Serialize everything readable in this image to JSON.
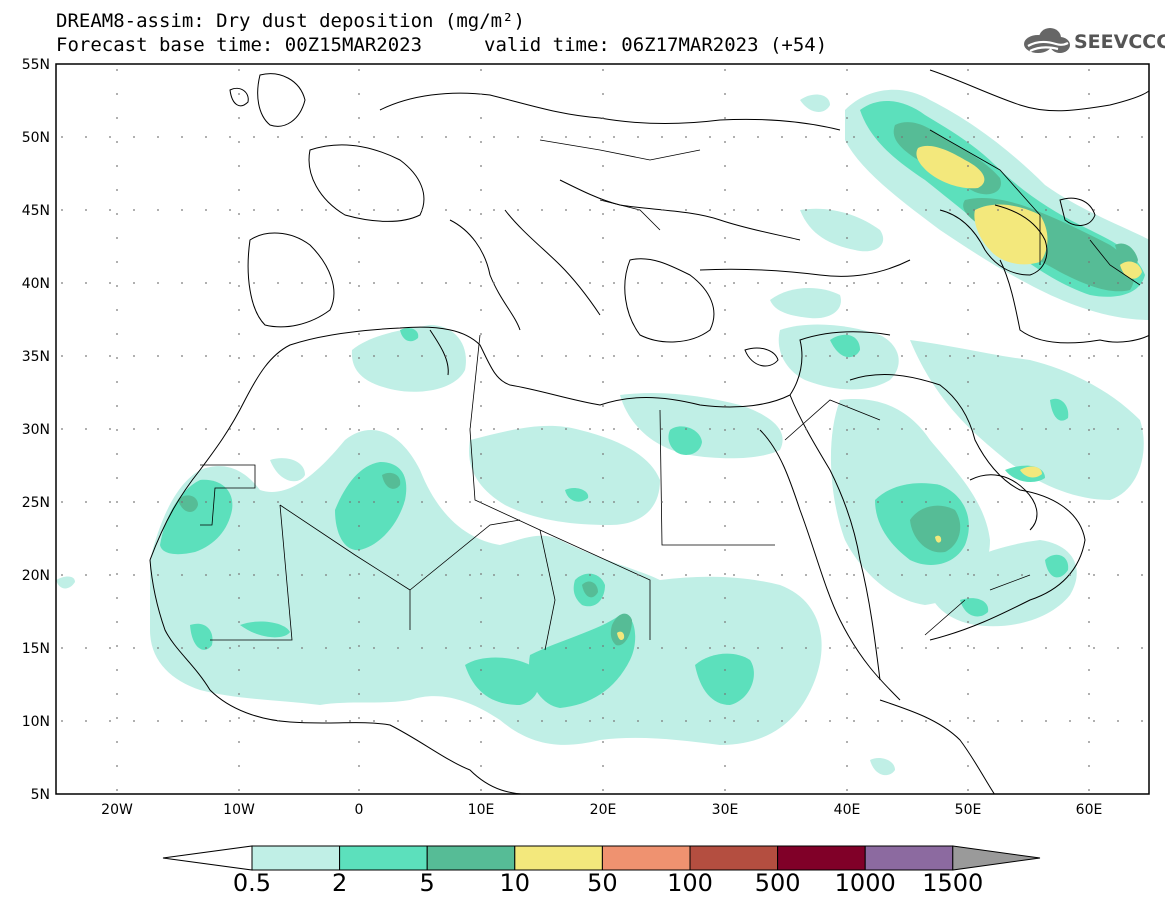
{
  "header": {
    "title_line1": "DREAM8-assim: Dry dust deposition (mg/m²)",
    "title_line2": "Forecast base time: 00Z15MAR2023",
    "valid_time": "valid time: 06Z17MAR2023 (+54)",
    "logo_text": "SEEVCCC"
  },
  "map": {
    "lat_labels": [
      "55N",
      "50N",
      "45N",
      "40N",
      "35N",
      "30N",
      "25N",
      "20N",
      "15N",
      "10N",
      "5N"
    ],
    "lon_labels": [
      "20W",
      "10W",
      "0",
      "10E",
      "20E",
      "30E",
      "40E",
      "50E",
      "60E"
    ]
  },
  "colorbar": {
    "labels": [
      "0.5",
      "2",
      "5",
      "10",
      "50",
      "100",
      "500",
      "1000",
      "1500"
    ],
    "colors": [
      "#c0efe6",
      "#5ce0bc",
      "#56bc96",
      "#f3e87c",
      "#ef9270",
      "#b44e40",
      "#800028",
      "#8c6aa0",
      "#9a9a9a"
    ]
  },
  "legend_colors": {
    "level1": "#c0efe6",
    "level2": "#5ce0bc",
    "level3": "#56bc96",
    "level4": "#f3e87c"
  }
}
